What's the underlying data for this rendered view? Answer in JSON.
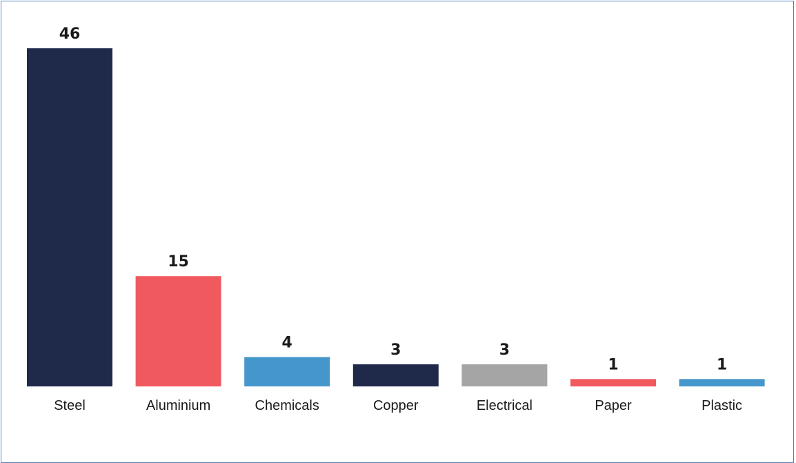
{
  "chart_data": {
    "type": "bar",
    "categories": [
      "Steel",
      "Aluminium",
      "Chemicals",
      "Copper",
      "Electrical",
      "Paper",
      "Plastic"
    ],
    "values": [
      46,
      15,
      4,
      3,
      3,
      1,
      1
    ],
    "colors": [
      "#1f294a",
      "#f0595e",
      "#4597cb",
      "#1f294a",
      "#a5a5a5",
      "#f0595e",
      "#4597cb"
    ],
    "data_labels": [
      "46",
      "15",
      "4",
      "3",
      "3",
      "1",
      "1"
    ],
    "ylim": [
      0,
      46
    ],
    "grid": false,
    "legend": "none"
  }
}
